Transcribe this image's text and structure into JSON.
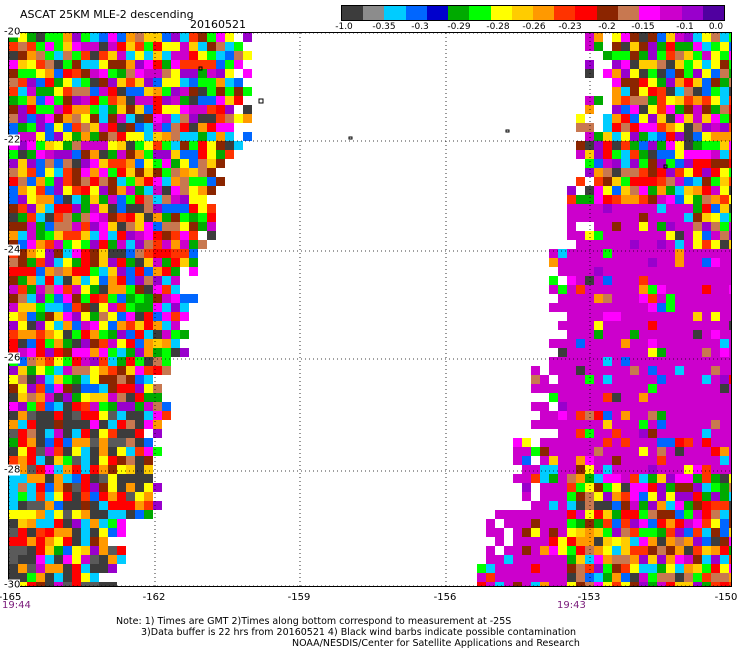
{
  "header": {
    "title": "ASCAT 25KM MLE-2 descending",
    "date": "20160521"
  },
  "colorbar": {
    "colors": [
      "#3c3c3c",
      "#8c8c8c",
      "#00ccff",
      "#0066ff",
      "#0000cc",
      "#00aa00",
      "#00ff00",
      "#ffff00",
      "#ffcc00",
      "#ff9900",
      "#ff3300",
      "#ff0000",
      "#8b2500",
      "#c87850",
      "#ff00ff",
      "#cc00cc",
      "#9900cc",
      "#5000a0"
    ],
    "ticks": [
      "-1.0",
      "-0.35",
      "-0.3",
      "-0.29",
      "-0.28",
      "-0.26",
      "-0.23",
      "-0.2",
      "-0.15",
      "-0.1",
      "0.0"
    ]
  },
  "axes": {
    "lat_labels": [
      "-20",
      "-22",
      "-24",
      "-26",
      "-28",
      "-30"
    ],
    "lon_labels": [
      "-165",
      "-162",
      "-159",
      "-156",
      "-153",
      "-150"
    ],
    "lat_range": [
      -30,
      -20
    ],
    "lon_range": [
      -165,
      -150
    ],
    "grid": "dotted"
  },
  "times": {
    "left": "19:44",
    "right": "19:43"
  },
  "notes": [
    "Note: 1) Times are GMT 2)Times along bottom correspond to measurement at -25S",
    "3)Data buffer is 22 hrs from 20160521 4) Black wind barbs indicate possible contamination",
    "NOAA/NESDIS/Center for Satellite Applications and Research"
  ]
}
